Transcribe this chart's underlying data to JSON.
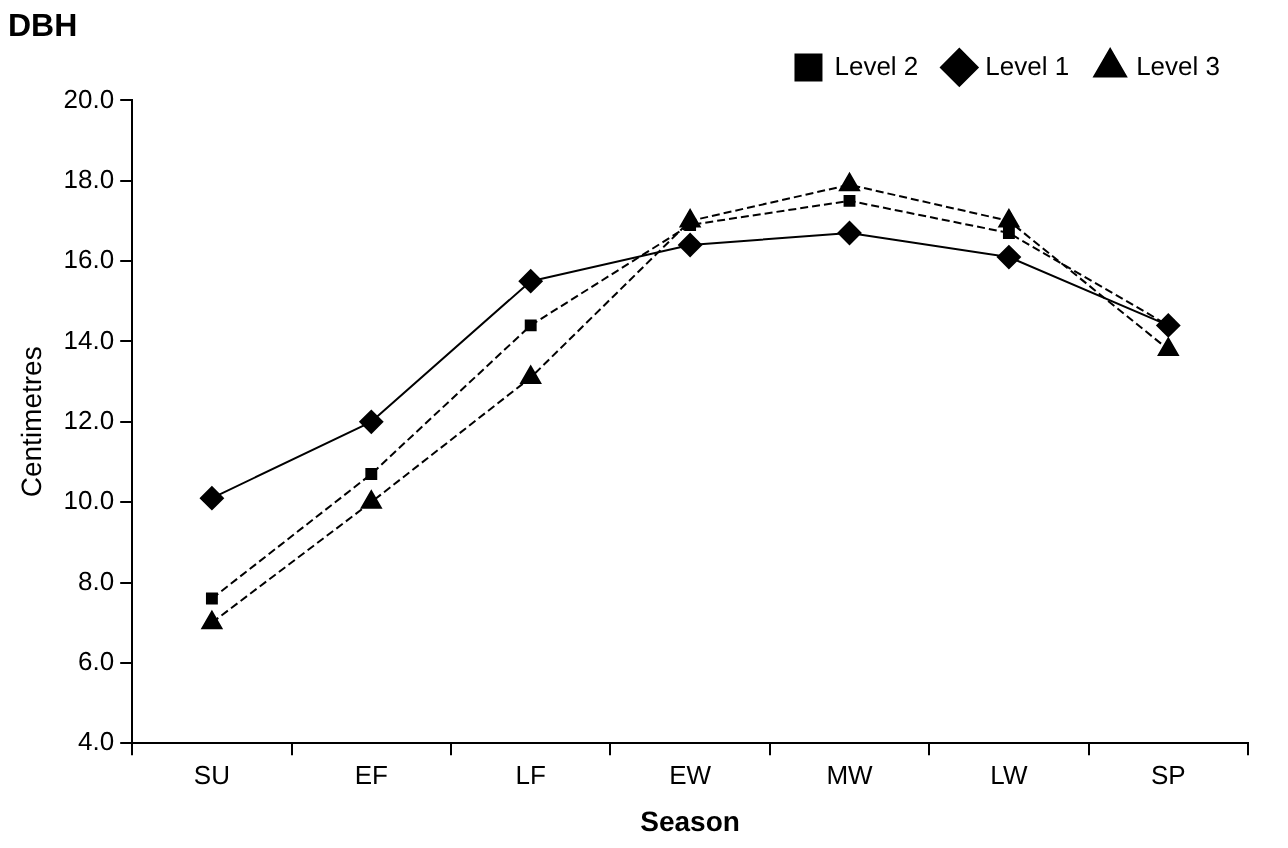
{
  "chart_data": {
    "type": "line",
    "title": "DBH",
    "xlabel": "Season",
    "ylabel": "Centimetres",
    "categories": [
      "SU",
      "EF",
      "LF",
      "EW",
      "MW",
      "LW",
      "SP"
    ],
    "series": [
      {
        "name": "Level 1",
        "color": "#000000",
        "marker": "diamond",
        "line_style": "solid",
        "values": [
          10.1,
          12.0,
          15.5,
          16.4,
          16.7,
          16.1,
          14.4
        ]
      },
      {
        "name": "Level 2",
        "color": "#000000",
        "marker": "square",
        "line_style": "dashed",
        "values": [
          7.6,
          10.7,
          14.4,
          16.9,
          17.5,
          16.7,
          14.4
        ]
      },
      {
        "name": "Level 3",
        "color": "#000000",
        "marker": "triangle",
        "line_style": "dashed",
        "values": [
          7.0,
          10.0,
          13.1,
          17.0,
          17.9,
          17.0,
          13.8
        ]
      }
    ],
    "ylim": [
      4,
      20
    ],
    "yticks": [
      {
        "value": 4,
        "label": "4.0"
      },
      {
        "value": 6,
        "label": "6.0"
      },
      {
        "value": 8,
        "label": "8.0"
      },
      {
        "value": 10,
        "label": "10.0"
      },
      {
        "value": 12,
        "label": "12.0"
      },
      {
        "value": 14,
        "label": "14.0"
      },
      {
        "value": 16,
        "label": "16.0"
      },
      {
        "value": 18,
        "label": "18.0"
      },
      {
        "value": 20,
        "label": "20.0"
      }
    ],
    "grid": false,
    "legend": "top right"
  }
}
